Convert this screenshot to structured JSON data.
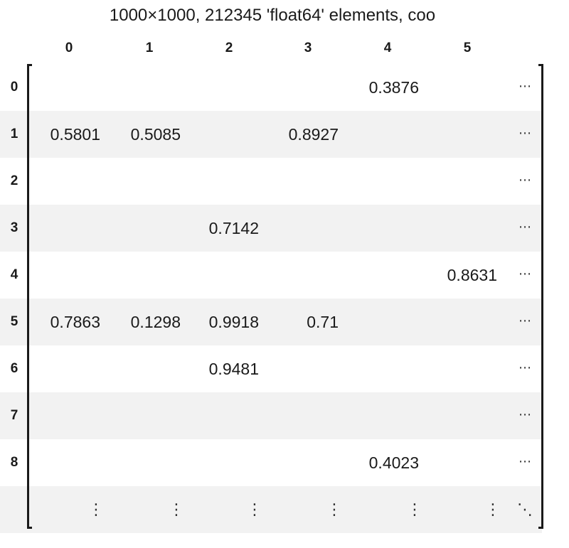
{
  "title": "1000×1000, 212345 'float64' elements, coo",
  "columns": [
    "0",
    "1",
    "2",
    "3",
    "4",
    "5"
  ],
  "rows": [
    {
      "label": "0",
      "cells": [
        "",
        "",
        "",
        "",
        "0.3876",
        ""
      ]
    },
    {
      "label": "1",
      "cells": [
        "0.5801",
        "0.5085",
        "",
        "0.8927",
        "",
        ""
      ]
    },
    {
      "label": "2",
      "cells": [
        "",
        "",
        "",
        "",
        "",
        ""
      ]
    },
    {
      "label": "3",
      "cells": [
        "",
        "",
        "0.7142",
        "",
        "",
        ""
      ]
    },
    {
      "label": "4",
      "cells": [
        "",
        "",
        "",
        "",
        "",
        "0.8631"
      ]
    },
    {
      "label": "5",
      "cells": [
        "0.7863",
        "0.1298",
        "0.9918",
        "0.71",
        "",
        ""
      ]
    },
    {
      "label": "6",
      "cells": [
        "",
        "",
        "0.9481",
        "",
        "",
        ""
      ]
    },
    {
      "label": "7",
      "cells": [
        "",
        "",
        "",
        "",
        "",
        ""
      ]
    },
    {
      "label": "8",
      "cells": [
        "",
        "",
        "",
        "",
        "0.4023",
        ""
      ]
    }
  ],
  "row_ellipsis": "⋯",
  "col_ellipsis": "⋮",
  "diag_ellipsis": "⋱"
}
